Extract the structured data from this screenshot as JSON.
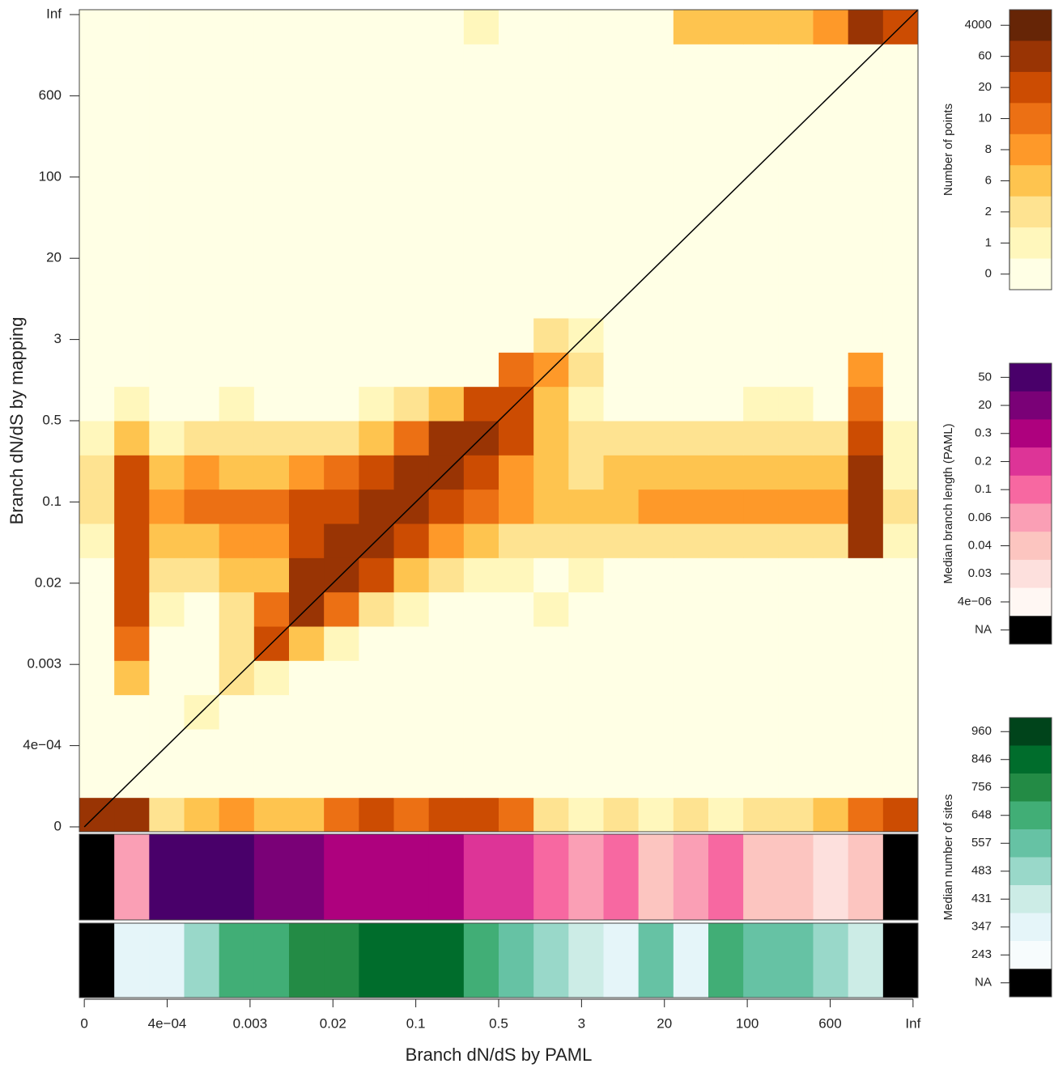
{
  "chart_data": {
    "type": "heatmap",
    "xlabel": "Branch dN/dS by PAML",
    "ylabel": "Branch dN/dS by mapping",
    "xlim": [
      -0.06,
      10.06
    ],
    "ylim": [
      -0.06,
      10.06
    ],
    "xticks": [
      0,
      {
        "value": 1,
        "label": "4e−04"
      },
      {
        "value": 2,
        "label": "0.003"
      },
      {
        "value": 3,
        "label": "0.02"
      },
      {
        "value": 4,
        "label": "0.1"
      },
      {
        "value": 5,
        "label": "0.5"
      },
      {
        "value": 6,
        "label": "3"
      },
      {
        "value": 7,
        "label": "20"
      },
      {
        "value": 8,
        "label": "100"
      },
      {
        "value": 9,
        "label": "600"
      },
      {
        "value": 10,
        "label": "Inf"
      }
    ],
    "yticks": [
      0,
      {
        "value": 1,
        "label": "4e−04"
      },
      {
        "value": 2,
        "label": "0.003"
      },
      {
        "value": 3,
        "label": "0.02"
      },
      {
        "value": 4,
        "label": "0.1"
      },
      {
        "value": 5,
        "label": "0.5"
      },
      {
        "value": 6,
        "label": "3"
      },
      {
        "value": 7,
        "label": "20"
      },
      {
        "value": 8,
        "label": "100"
      },
      {
        "value": 9,
        "label": "600"
      },
      {
        "value": 10,
        "label": "Inf"
      }
    ],
    "color_scale": {
      "title": "Number of points",
      "levels": [
        4000,
        60,
        20,
        10,
        8,
        6,
        2,
        1,
        0
      ],
      "colors": [
        "#662506",
        "#993404",
        "#cc4c02",
        "#ec7014",
        "#fe9929",
        "#fec44f",
        "#fee391",
        "#fff7bc",
        "#ffffe5"
      ]
    },
    "z": [
      [
        60,
        60,
        2,
        6,
        8,
        6,
        6,
        10,
        20,
        10,
        20,
        20,
        10,
        2,
        1,
        2,
        1,
        2,
        1,
        2,
        2,
        6,
        10,
        20
      ],
      [
        0,
        0,
        0,
        0,
        0,
        0,
        0,
        0,
        0,
        0,
        0,
        0,
        0,
        0,
        0,
        0,
        0,
        0,
        0,
        0,
        0,
        0,
        0,
        0
      ],
      [
        0,
        0,
        0,
        0,
        0,
        0,
        0,
        0,
        0,
        0,
        0,
        0,
        0,
        0,
        0,
        0,
        0,
        0,
        0,
        0,
        0,
        0,
        0,
        0
      ],
      [
        0,
        0,
        0,
        1,
        0,
        0,
        0,
        0,
        0,
        0,
        0,
        0,
        0,
        0,
        0,
        0,
        0,
        0,
        0,
        0,
        0,
        0,
        0,
        0
      ],
      [
        0,
        6,
        0,
        0,
        2,
        1,
        0,
        0,
        0,
        0,
        0,
        0,
        0,
        0,
        0,
        0,
        0,
        0,
        0,
        0,
        0,
        0,
        0,
        0
      ],
      [
        0,
        10,
        0,
        0,
        2,
        20,
        6,
        1,
        0,
        0,
        0,
        0,
        0,
        0,
        0,
        0,
        0,
        0,
        0,
        0,
        0,
        0,
        0,
        0
      ],
      [
        0,
        20,
        1,
        0,
        2,
        10,
        60,
        10,
        2,
        1,
        0,
        0,
        0,
        1,
        0,
        0,
        0,
        0,
        0,
        0,
        0,
        0,
        0,
        0
      ],
      [
        0,
        20,
        2,
        2,
        6,
        6,
        60,
        60,
        20,
        6,
        2,
        1,
        1,
        0,
        1,
        0,
        0,
        0,
        0,
        0,
        0,
        0,
        0,
        0
      ],
      [
        1,
        20,
        6,
        6,
        8,
        8,
        20,
        60,
        60,
        20,
        8,
        6,
        2,
        2,
        2,
        2,
        2,
        2,
        2,
        2,
        2,
        2,
        60,
        1
      ],
      [
        2,
        20,
        8,
        10,
        10,
        10,
        20,
        20,
        60,
        60,
        20,
        10,
        8,
        6,
        6,
        6,
        8,
        8,
        8,
        8,
        8,
        8,
        60,
        2
      ],
      [
        2,
        20,
        6,
        8,
        6,
        6,
        8,
        10,
        20,
        60,
        60,
        20,
        8,
        6,
        2,
        6,
        6,
        6,
        6,
        6,
        6,
        6,
        60,
        1
      ],
      [
        1,
        6,
        1,
        2,
        2,
        2,
        2,
        2,
        6,
        10,
        60,
        60,
        20,
        6,
        2,
        2,
        2,
        2,
        2,
        2,
        2,
        2,
        20,
        1
      ],
      [
        0,
        1,
        0,
        0,
        1,
        0,
        0,
        0,
        1,
        2,
        6,
        20,
        20,
        6,
        1,
        0,
        0,
        0,
        0,
        1,
        1,
        0,
        10,
        0
      ],
      [
        0,
        0,
        0,
        0,
        0,
        0,
        0,
        0,
        0,
        0,
        0,
        0,
        10,
        8,
        2,
        0,
        0,
        0,
        0,
        0,
        0,
        0,
        8,
        0
      ],
      [
        0,
        0,
        0,
        0,
        0,
        0,
        0,
        0,
        0,
        0,
        0,
        0,
        0,
        2,
        1,
        0,
        0,
        0,
        0,
        0,
        0,
        0,
        0,
        0
      ],
      [
        0,
        0,
        0,
        0,
        0,
        0,
        0,
        0,
        0,
        0,
        0,
        0,
        0,
        0,
        0,
        0,
        0,
        0,
        0,
        0,
        0,
        0,
        0,
        0
      ],
      [
        0,
        0,
        0,
        0,
        0,
        0,
        0,
        0,
        0,
        0,
        0,
        0,
        0,
        0,
        0,
        0,
        0,
        0,
        0,
        0,
        0,
        0,
        0,
        0
      ],
      [
        0,
        0,
        0,
        0,
        0,
        0,
        0,
        0,
        0,
        0,
        0,
        0,
        0,
        0,
        0,
        0,
        0,
        0,
        0,
        0,
        0,
        0,
        0,
        0
      ],
      [
        0,
        0,
        0,
        0,
        0,
        0,
        0,
        0,
        0,
        0,
        0,
        0,
        0,
        0,
        0,
        0,
        0,
        0,
        0,
        0,
        0,
        0,
        0,
        0
      ],
      [
        0,
        0,
        0,
        0,
        0,
        0,
        0,
        0,
        0,
        0,
        0,
        0,
        0,
        0,
        0,
        0,
        0,
        0,
        0,
        0,
        0,
        0,
        0,
        0
      ],
      [
        0,
        0,
        0,
        0,
        0,
        0,
        0,
        0,
        0,
        0,
        0,
        0,
        0,
        0,
        0,
        0,
        0,
        0,
        0,
        0,
        0,
        0,
        0,
        0
      ],
      [
        0,
        0,
        0,
        0,
        0,
        0,
        0,
        0,
        0,
        0,
        0,
        0,
        0,
        0,
        0,
        0,
        0,
        0,
        0,
        0,
        0,
        0,
        0,
        0
      ],
      [
        0,
        0,
        0,
        0,
        0,
        0,
        0,
        0,
        0,
        0,
        0,
        0,
        0,
        0,
        0,
        0,
        0,
        0,
        0,
        0,
        0,
        0,
        0,
        0
      ],
      [
        0,
        0,
        0,
        0,
        0,
        0,
        0,
        0,
        0,
        0,
        0,
        1,
        0,
        0,
        0,
        0,
        0,
        6,
        6,
        6,
        6,
        8,
        60,
        20
      ]
    ],
    "strips": [
      {
        "title": "Median branch length (PAML)",
        "levels": [
          50,
          20,
          0.3,
          0.2,
          0.1,
          0.06,
          0.04,
          0.03,
          {
            "value": 4e-06,
            "label": "4e−06"
          },
          "NA"
        ],
        "colors": [
          "#49006a",
          "#7a0177",
          "#ae017e",
          "#dd3497",
          "#f768a1",
          "#fa9fb5",
          "#fcc5c0",
          "#fde0dd",
          "#fff7f3",
          "#000000"
        ],
        "values": [
          null,
          0.06,
          55,
          55,
          55,
          25,
          25,
          0.35,
          0.35,
          0.35,
          0.35,
          0.25,
          0.25,
          0.15,
          0.07,
          0.15,
          0.05,
          0.07,
          0.12,
          0.05,
          0.05,
          0.035,
          0.05,
          null
        ]
      },
      {
        "title": "Median number of sites",
        "levels": [
          960,
          846,
          756,
          648,
          557,
          483,
          431,
          347,
          243,
          "NA"
        ],
        "colors": [
          "#00441b",
          "#006d2c",
          "#238b45",
          "#41ae76",
          "#66c2a4",
          "#99d8c9",
          "#ccece6",
          "#e5f5f9",
          "#f7fcfd",
          "#000000"
        ],
        "values": [
          null,
          400,
          350,
          500,
          700,
          700,
          800,
          760,
          900,
          870,
          900,
          700,
          600,
          500,
          450,
          350,
          600,
          350,
          650,
          600,
          560,
          500,
          440,
          null
        ]
      }
    ]
  }
}
